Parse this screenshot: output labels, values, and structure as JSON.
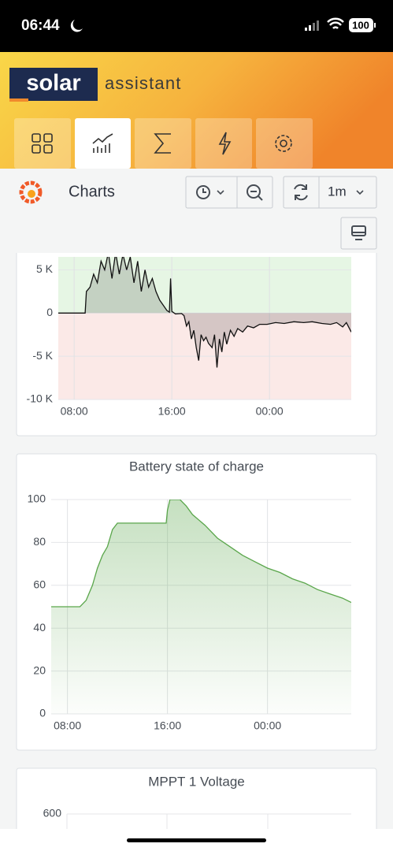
{
  "status_bar": {
    "time": "06:44",
    "battery": "100"
  },
  "header": {
    "logo_word": "solar",
    "logo_sub": "assistant"
  },
  "toolbar": {
    "title": "Charts",
    "refresh": "1m"
  },
  "panels": [
    {
      "type": "area",
      "color": "#111111",
      "above_color": "#e6f6e4",
      "below_color": "#fbe9e7",
      "fill_gradient": false,
      "xlim": [
        6.7,
        30.7
      ],
      "ylim": [
        -10000,
        6500
      ],
      "xticks": [
        {
          "value": 8,
          "label": "08:00"
        },
        {
          "value": 16,
          "label": "16:00"
        },
        {
          "value": 24,
          "label": "00:00"
        }
      ],
      "yticks": [
        {
          "value": 5000,
          "label": "5 K"
        },
        0,
        {
          "value": -5000,
          "label": "-5 K"
        },
        {
          "value": -10000,
          "label": "-10 K"
        }
      ],
      "x": [
        6.7,
        8.9,
        9.0,
        9.3,
        9.6,
        9.9,
        10.2,
        10.5,
        10.8,
        11.1,
        11.4,
        11.7,
        12.0,
        12.3,
        12.6,
        12.9,
        13.2,
        13.5,
        13.8,
        14.1,
        14.4,
        14.7,
        15.0,
        15.3,
        15.6,
        15.8,
        15.9,
        16.0,
        16.3,
        16.8,
        17.0,
        17.2,
        17.4,
        17.6,
        17.8,
        18.0,
        18.2,
        18.4,
        18.6,
        18.8,
        19.0,
        19.3,
        19.5,
        19.7,
        19.9,
        20.1,
        20.3,
        20.5,
        20.8,
        21.1,
        21.4,
        21.8,
        22.2,
        22.7,
        23.2,
        23.8,
        24.5,
        25.2,
        26.0,
        26.8,
        27.5,
        28.3,
        29.0,
        29.5,
        30.0,
        30.3,
        30.7
      ],
      "values": [
        0,
        0,
        2500,
        3000,
        4500,
        3500,
        6000,
        5000,
        7000,
        4000,
        7000,
        4500,
        6800,
        5000,
        6500,
        3500,
        6000,
        2500,
        5000,
        3000,
        4000,
        2500,
        1500,
        900,
        300,
        100,
        4000,
        200,
        -100,
        -50,
        -300,
        -1500,
        -1000,
        -3000,
        -2000,
        -4000,
        -5500,
        -2500,
        -3200,
        -2800,
        -3500,
        -4000,
        -2500,
        -6300,
        -3000,
        -4500,
        -2200,
        -3600,
        -2000,
        -2700,
        -1800,
        -2200,
        -1500,
        -1700,
        -1300,
        -1300,
        -1100,
        -1200,
        -1000,
        -1100,
        -1000,
        -1200,
        -1300,
        -1100,
        -1600,
        -1100,
        -2200
      ]
    },
    {
      "type": "area",
      "title": "Battery state of charge",
      "color": "#5aa64b",
      "fill_gradient": true,
      "xlim": [
        6.7,
        30.7
      ],
      "ylim": [
        0,
        100
      ],
      "xticks": [
        {
          "value": 8,
          "label": "08:00"
        },
        {
          "value": 16,
          "label": "16:00"
        },
        {
          "value": 24,
          "label": "00:00"
        }
      ],
      "yticks": [
        0,
        20,
        40,
        60,
        80,
        100
      ],
      "x": [
        6.7,
        9.0,
        9.5,
        10.0,
        10.4,
        10.8,
        11.2,
        11.6,
        12.0,
        15.9,
        16.0,
        16.2,
        17.0,
        17.5,
        18.0,
        19.0,
        20.0,
        21.0,
        22.0,
        23.0,
        24.0,
        25.0,
        26.0,
        27.0,
        28.0,
        29.0,
        30.0,
        30.7
      ],
      "values": [
        50,
        50,
        53,
        60,
        68,
        74,
        78,
        86,
        89,
        89,
        95,
        100,
        100,
        97,
        93,
        88,
        82,
        78,
        74,
        71,
        68,
        66,
        63,
        61,
        58,
        56,
        54,
        52
      ]
    },
    {
      "type": "area",
      "title": "MPPT 1 Voltage",
      "yticks": [
        600
      ]
    }
  ]
}
